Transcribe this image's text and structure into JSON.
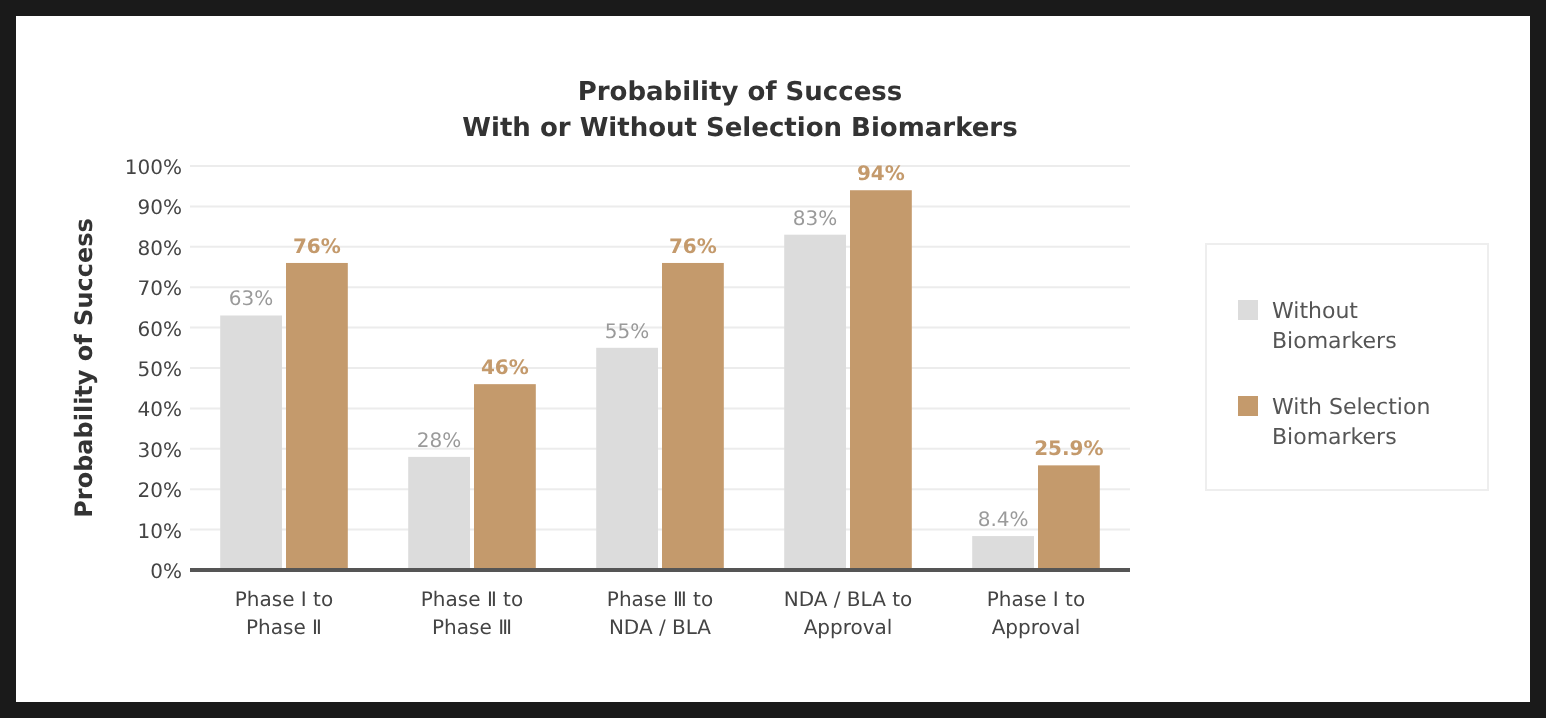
{
  "chart_data": {
    "type": "bar",
    "title": "Probability of Success\nWith or Without Selection Biomarkers",
    "ylabel": "Probability of Success",
    "categories": [
      "Phase Ⅰ to\nPhase Ⅱ",
      "Phase Ⅱ to\nPhase Ⅲ",
      "Phase Ⅲ to\nNDA / BLA",
      "NDA / BLA to\nApproval",
      "Phase Ⅰ to\nApproval"
    ],
    "series": [
      {
        "name": "Without\nBiomarkers",
        "color": "#dcdcdc",
        "values": [
          63,
          28,
          55,
          83,
          8.4
        ],
        "value_labels": [
          "63%",
          "28%",
          "55%",
          "83%",
          "8.4%"
        ]
      },
      {
        "name": "With Selection\nBiomarkers",
        "color": "#c49a6c",
        "values": [
          76,
          46,
          76,
          94,
          25.9
        ],
        "value_labels": [
          "76%",
          "46%",
          "76%",
          "94%",
          "25.9%"
        ]
      }
    ],
    "ylim": [
      0,
      100
    ],
    "yticks": [
      {
        "value": 0,
        "label": "0%"
      },
      {
        "value": 10,
        "label": "10%"
      },
      {
        "value": 20,
        "label": "20%"
      },
      {
        "value": 30,
        "label": "30%"
      },
      {
        "value": 40,
        "label": "40%"
      },
      {
        "value": 50,
        "label": "50%"
      },
      {
        "value": 60,
        "label": "60%"
      },
      {
        "value": 70,
        "label": "70%"
      },
      {
        "value": 80,
        "label": "80%"
      },
      {
        "value": 90,
        "label": "90%"
      },
      {
        "value": 100,
        "label": "100%"
      }
    ],
    "grid": "y",
    "legend": "right"
  }
}
